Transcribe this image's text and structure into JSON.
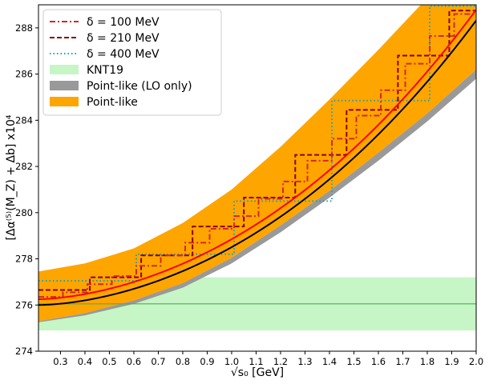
{
  "chart_data": {
    "type": "line",
    "title": "",
    "xlabel": "√s₀ [GeV]",
    "ylabel": "[Δα⁽⁵⁾(M_Z) + Δb] x10⁴",
    "xlim": [
      0.21,
      2.0
    ],
    "ylim": [
      274,
      289
    ],
    "x_ticks": [
      0.3,
      0.4,
      0.5,
      0.6,
      0.7,
      0.8,
      0.9,
      1.0,
      1.1,
      1.2,
      1.3,
      1.4,
      1.5,
      1.6,
      1.7,
      1.8,
      1.9,
      2.0
    ],
    "x_tick_labels": [
      "0.3",
      "0.4",
      "0.5",
      "0.6",
      "0.7",
      "0.8",
      "0.9",
      "1.0",
      "1.1",
      "1.2",
      "1.3",
      "1.4",
      "1.5",
      "1.6",
      "1.7",
      "1.8",
      "1.9",
      "2.0"
    ],
    "y_ticks": [
      274,
      276,
      278,
      280,
      282,
      284,
      286,
      288
    ],
    "y_tick_labels": [
      "274",
      "276",
      "278",
      "280",
      "282",
      "284",
      "286",
      "288"
    ],
    "legend_position": "top-left",
    "legend": [
      {
        "label": "δ = 100 MeV",
        "style": "dashdot",
        "color": "#d62728"
      },
      {
        "label": "δ = 210 MeV",
        "style": "dashed",
        "color": "#8b0000"
      },
      {
        "label": "δ = 400 MeV",
        "style": "dotted",
        "color": "#17a2b8"
      },
      {
        "label": "KNT19",
        "style": "patch",
        "color": "#c6f5c6"
      },
      {
        "label": "Point-like (LO only)",
        "style": "patch",
        "color": "#999999"
      },
      {
        "label": "Point-like",
        "style": "patch",
        "color": "#ffa500"
      }
    ],
    "knt19": {
      "center": 276.05,
      "low": 274.9,
      "high": 277.2,
      "band_color": "#c6f5c6",
      "line_color": "#4caf50"
    },
    "curve_model": {
      "description": "central prediction y = 276.0 + 3.3*(x-0.21)^1.7 + 0.6*(x-0.21)^3",
      "point_like_center": {
        "color": "#000000"
      },
      "red_curve": {
        "color": "#ff0000"
      }
    },
    "point_like_band": {
      "color": "#ffa500",
      "x": [
        0.21,
        0.4,
        0.6,
        0.8,
        1.0,
        1.2,
        1.4,
        1.6,
        1.8,
        2.0
      ],
      "low": [
        275.3,
        275.65,
        276.2,
        276.95,
        278.05,
        279.45,
        280.95,
        282.6,
        284.3,
        286.2
      ],
      "high": [
        277.45,
        277.8,
        278.45,
        279.55,
        281.0,
        282.85,
        284.9,
        287.05,
        289.3,
        291.6
      ]
    },
    "lo_band": {
      "color": "#999999",
      "x": [
        0.21,
        0.4,
        0.6,
        0.8,
        1.0,
        1.2,
        1.4,
        1.6,
        1.8,
        2.0
      ],
      "low": [
        275.25,
        275.55,
        276.05,
        276.75,
        277.8,
        279.15,
        280.65,
        282.25,
        283.95,
        285.8
      ],
      "high": [
        275.3,
        275.65,
        276.2,
        276.95,
        278.05,
        279.45,
        280.95,
        282.6,
        284.3,
        286.2
      ]
    },
    "series": [
      {
        "name": "δ = 400 MeV",
        "color": "#17a2b8",
        "style": "dotted",
        "steps": [
          {
            "x0": 0.21,
            "x1": 0.61,
            "y": 277.05
          },
          {
            "x0": 0.61,
            "x1": 1.01,
            "y": 278.2
          },
          {
            "x0": 1.01,
            "x1": 1.41,
            "y": 280.5
          },
          {
            "x0": 1.41,
            "x1": 1.81,
            "y": 284.85
          },
          {
            "x0": 1.81,
            "x1": 2.0,
            "y": 288.95
          }
        ]
      },
      {
        "name": "δ = 210 MeV",
        "color": "#8b0000",
        "style": "dashed",
        "steps": [
          {
            "x0": 0.21,
            "x1": 0.42,
            "y": 276.65
          },
          {
            "x0": 0.42,
            "x1": 0.63,
            "y": 277.2
          },
          {
            "x0": 0.63,
            "x1": 0.84,
            "y": 278.15
          },
          {
            "x0": 0.84,
            "x1": 1.05,
            "y": 279.4
          },
          {
            "x0": 1.05,
            "x1": 1.26,
            "y": 280.65
          },
          {
            "x0": 1.26,
            "x1": 1.47,
            "y": 282.5
          },
          {
            "x0": 1.47,
            "x1": 1.68,
            "y": 284.45
          },
          {
            "x0": 1.68,
            "x1": 1.89,
            "y": 286.8
          },
          {
            "x0": 1.89,
            "x1": 2.0,
            "y": 288.75
          }
        ]
      },
      {
        "name": "δ = 100 MeV",
        "color": "#d62728",
        "style": "dashdot",
        "steps": [
          {
            "x0": 0.21,
            "x1": 0.31,
            "y": 276.35
          },
          {
            "x0": 0.31,
            "x1": 0.41,
            "y": 276.55
          },
          {
            "x0": 0.41,
            "x1": 0.51,
            "y": 276.9
          },
          {
            "x0": 0.51,
            "x1": 0.61,
            "y": 277.25
          },
          {
            "x0": 0.61,
            "x1": 0.71,
            "y": 277.7
          },
          {
            "x0": 0.71,
            "x1": 0.81,
            "y": 278.15
          },
          {
            "x0": 0.81,
            "x1": 0.91,
            "y": 278.7
          },
          {
            "x0": 0.91,
            "x1": 1.01,
            "y": 279.3
          },
          {
            "x0": 1.01,
            "x1": 1.11,
            "y": 279.85
          },
          {
            "x0": 1.11,
            "x1": 1.21,
            "y": 280.6
          },
          {
            "x0": 1.21,
            "x1": 1.31,
            "y": 281.35
          },
          {
            "x0": 1.31,
            "x1": 1.41,
            "y": 282.25
          },
          {
            "x0": 1.41,
            "x1": 1.51,
            "y": 283.2
          },
          {
            "x0": 1.51,
            "x1": 1.61,
            "y": 284.2
          },
          {
            "x0": 1.61,
            "x1": 1.71,
            "y": 285.3
          },
          {
            "x0": 1.71,
            "x1": 1.81,
            "y": 286.45
          },
          {
            "x0": 1.81,
            "x1": 1.91,
            "y": 287.65
          },
          {
            "x0": 1.91,
            "x1": 2.0,
            "y": 288.6
          }
        ]
      }
    ]
  }
}
